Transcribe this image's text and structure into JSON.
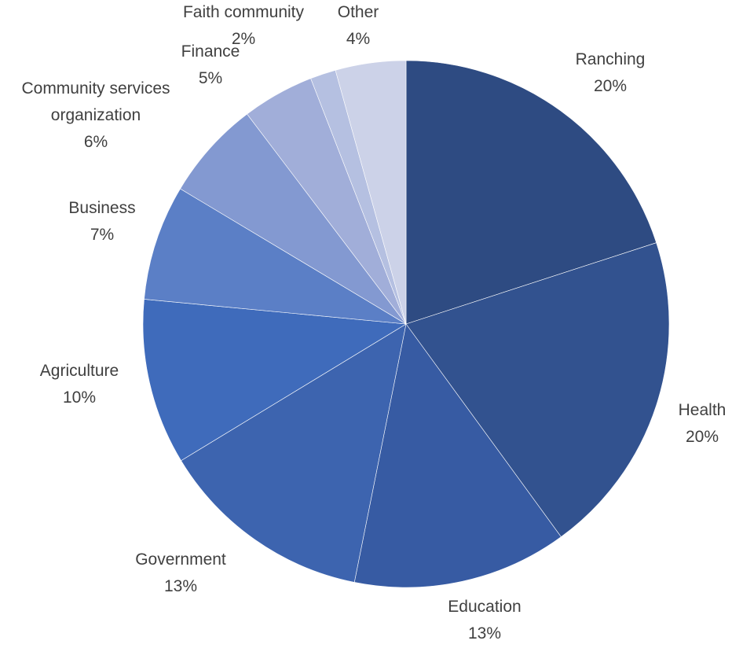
{
  "chart_data": {
    "type": "pie",
    "title": "",
    "start_angle_deg": 0,
    "direction": "clockwise",
    "slices": [
      {
        "label": "Ranching",
        "value": 20.35,
        "pct_label": "20%",
        "color": "#2E4B82"
      },
      {
        "label": "Health",
        "value": 20.3,
        "pct_label": "20%",
        "color": "#32528F"
      },
      {
        "label": "Education",
        "value": 13.4,
        "pct_label": "13%",
        "color": "#375BA3"
      },
      {
        "label": "Government",
        "value": 13.4,
        "pct_label": "13%",
        "color": "#3D64AF"
      },
      {
        "label": "Agriculture",
        "value": 10.35,
        "pct_label": "10%",
        "color": "#3F6BBB"
      },
      {
        "label": "Business",
        "value": 7.2,
        "pct_label": "7%",
        "color": "#5B7FC6"
      },
      {
        "label": "Community services organization",
        "label_lines": [
          "Community services",
          "organization"
        ],
        "value": 6.2,
        "pct_label": "6%",
        "color": "#8399D1"
      },
      {
        "label": "Finance",
        "value": 4.5,
        "pct_label": "5%",
        "color": "#A1AED9"
      },
      {
        "label": "Faith community",
        "value": 1.6,
        "pct_label": "2%",
        "color": "#B5C0E1"
      },
      {
        "label": "Other",
        "value": 4.4,
        "pct_label": "4%",
        "color": "#CCD2E8"
      }
    ],
    "legend": "none",
    "data_labels": "outside, category name and percentage"
  }
}
